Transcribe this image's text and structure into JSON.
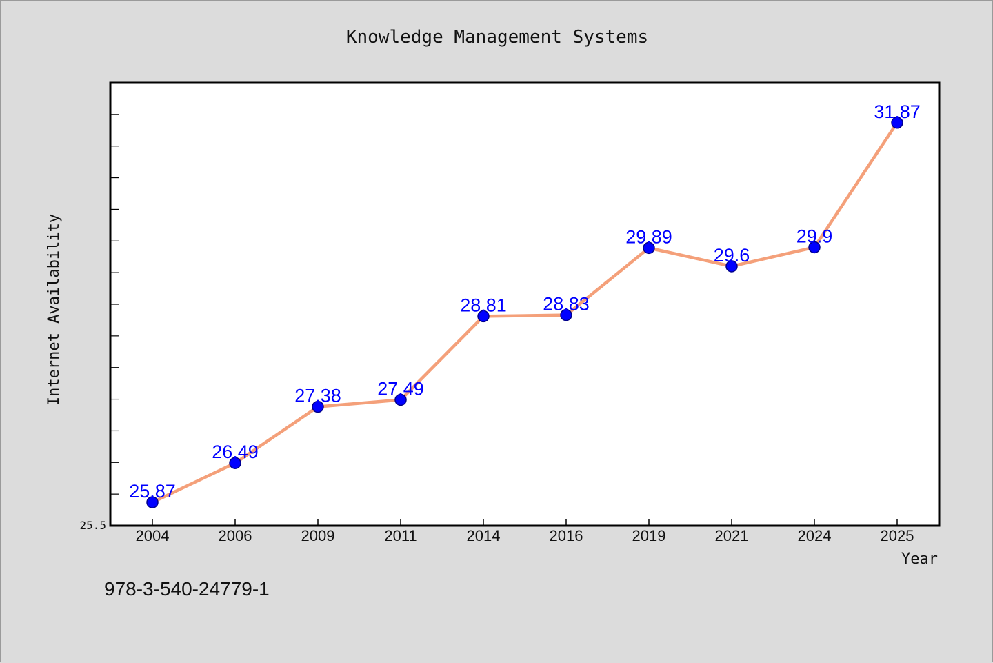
{
  "chart_data": {
    "type": "line",
    "title": "Knowledge Management Systems",
    "xlabel": "Year",
    "ylabel": "Internet Availability",
    "categories": [
      "2004",
      "2006",
      "2009",
      "2011",
      "2014",
      "2016",
      "2019",
      "2021",
      "2024",
      "2025"
    ],
    "series": [
      {
        "values": [
          25.87,
          26.49,
          27.38,
          27.49,
          28.81,
          28.83,
          29.89,
          29.6,
          29.9,
          31.87
        ],
        "labels": [
          "25.87",
          "26.49",
          "27.38",
          "27.49",
          "28.81",
          "28.83",
          "29.89",
          "29.6",
          "29.9",
          "31.87"
        ],
        "line_color": "#f4a07a",
        "marker_color": "#0000ff"
      }
    ],
    "ylim": [
      25.5,
      32.5
    ],
    "ytick_labels": [
      "25.5"
    ],
    "grid": false,
    "plot_background": "#ffffff",
    "page_background": "#dcdcdc"
  },
  "footer": {
    "text": "978-3-540-24779-1"
  }
}
